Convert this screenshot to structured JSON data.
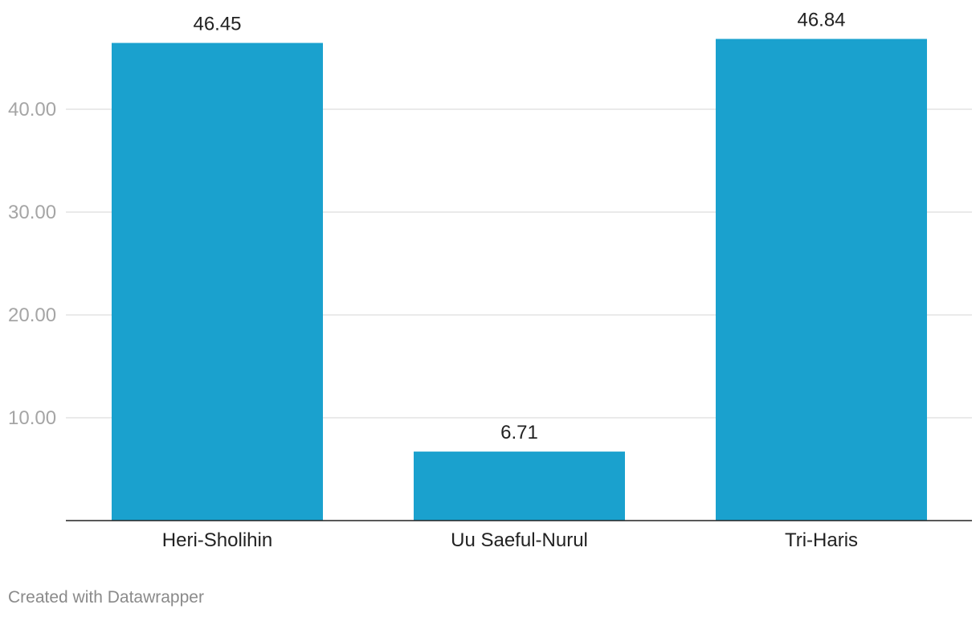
{
  "chart_data": {
    "type": "bar",
    "categories": [
      "Heri-Sholihin",
      "Uu Saeful-Nurul",
      "Tri-Haris"
    ],
    "values": [
      46.45,
      6.71,
      46.84
    ],
    "value_labels": [
      "46.45",
      "6.71",
      "46.84"
    ],
    "y_ticks": [
      10,
      20,
      30,
      40
    ],
    "y_tick_labels": [
      "10.00",
      "20.00",
      "30.00",
      "40.00"
    ],
    "ylim": [
      0,
      46.84
    ],
    "grid": true,
    "bar_color": "#1aa1ce"
  },
  "footer": {
    "credit": "Created with Datawrapper"
  }
}
